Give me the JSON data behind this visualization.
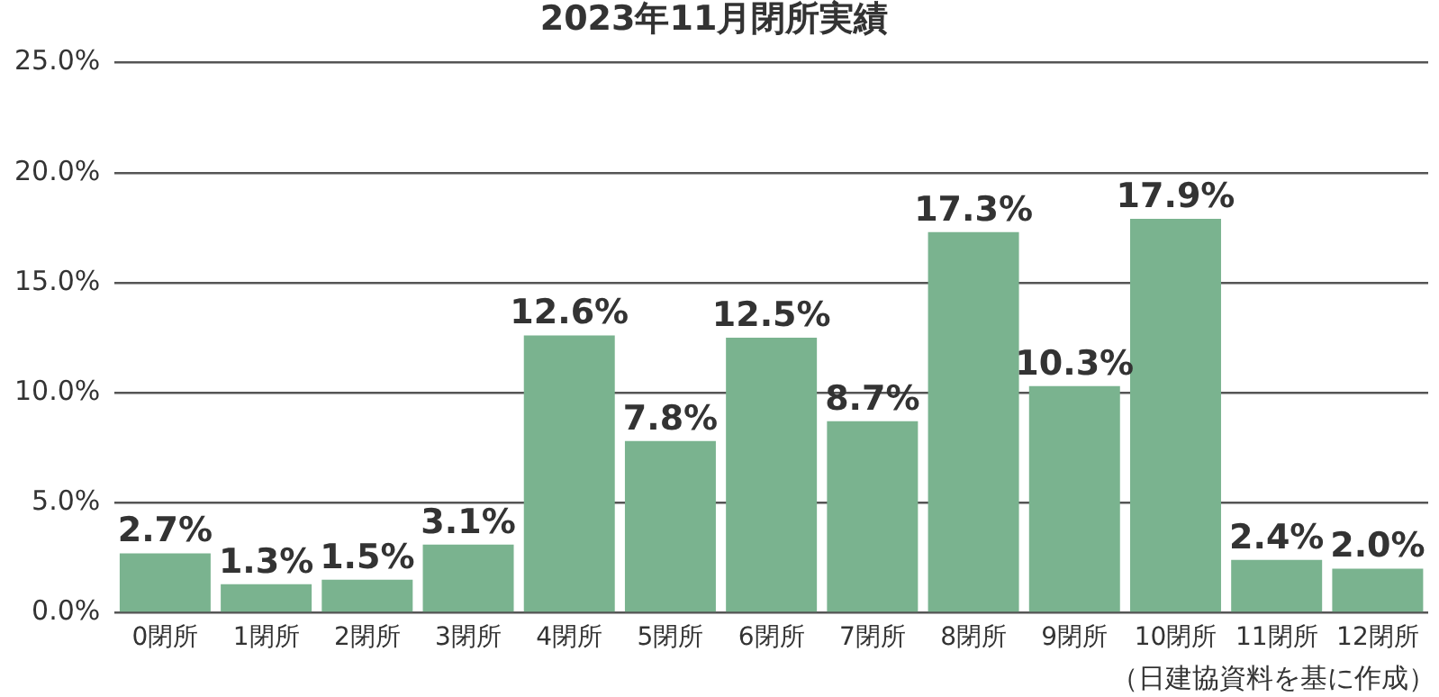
{
  "chart_data": {
    "type": "bar",
    "title": "2023年11月閉所実績",
    "categories": [
      "0閉所",
      "1閉所",
      "2閉所",
      "3閉所",
      "4閉所",
      "5閉所",
      "6閉所",
      "7閉所",
      "8閉所",
      "9閉所",
      "10閉所",
      "11閉所",
      "12閉所"
    ],
    "values": [
      2.7,
      1.3,
      1.5,
      3.1,
      12.6,
      7.8,
      12.5,
      8.7,
      17.3,
      10.3,
      17.9,
      2.4,
      2.0
    ],
    "value_labels": [
      "2.7%",
      "1.3%",
      "1.5%",
      "3.1%",
      "12.6%",
      "7.8%",
      "12.5%",
      "8.7%",
      "17.3%",
      "10.3%",
      "17.9%",
      "2.4%",
      "2.0%"
    ],
    "color": "#7ab38f",
    "ylim": [
      0,
      25
    ],
    "yticks": [
      {
        "value": 0,
        "label": "0.0%"
      },
      {
        "value": 5,
        "label": "5.0%"
      },
      {
        "value": 10,
        "label": "10.0%"
      },
      {
        "value": 15,
        "label": "15.0%"
      },
      {
        "value": 20,
        "label": "20.0%"
      },
      {
        "value": 25,
        "label": "25.0%"
      }
    ],
    "grid": "y",
    "legend": false,
    "annotations": [
      "（日建協資料を基に作成）"
    ]
  }
}
